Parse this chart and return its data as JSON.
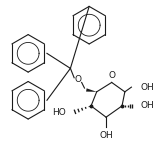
{
  "background": "#ffffff",
  "line_color": "#1a1a1a",
  "line_width": 0.8,
  "font_size": 6.5,
  "fig_width": 1.55,
  "fig_height": 1.48,
  "dpi": 100,
  "xlim": [
    0,
    155
  ],
  "ylim": [
    0,
    148
  ]
}
